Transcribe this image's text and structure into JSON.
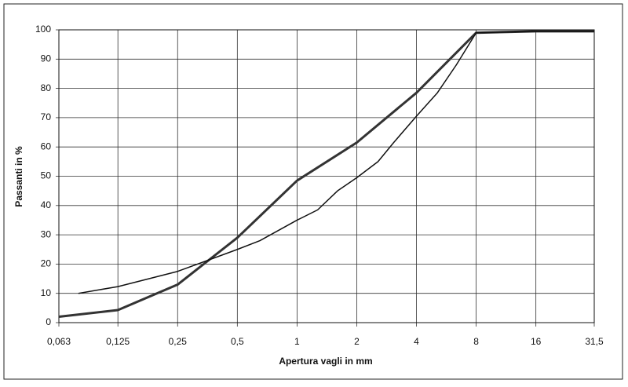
{
  "chart_data": {
    "type": "line",
    "xlabel": "Apertura vagli in mm",
    "ylabel": "Passanti in %",
    "xscale": "log",
    "xlim": [
      0.063,
      31.5
    ],
    "xticks": [
      {
        "value": 0.063,
        "label": "0,063"
      },
      {
        "value": 0.125,
        "label": "0,125"
      },
      {
        "value": 0.25,
        "label": "0,25"
      },
      {
        "value": 0.5,
        "label": "0,5"
      },
      1,
      2,
      4,
      8,
      16,
      {
        "value": 31.5,
        "label": "31,5"
      }
    ],
    "ylim": [
      0,
      100
    ],
    "yticks": [
      0,
      10,
      20,
      30,
      40,
      50,
      60,
      70,
      80,
      90,
      100
    ],
    "grid": true,
    "series": [
      {
        "color": "#333333",
        "x": [
          0.063,
          0.125,
          0.25,
          0.5,
          1,
          2,
          4,
          8,
          16,
          31.5
        ],
        "values": [
          2,
          4.3,
          13,
          29,
          48.5,
          61.5,
          78.5,
          99,
          99.5,
          99.5
        ]
      },
      {
        "color": "#111111",
        "x": [
          0.079,
          0.125,
          0.25,
          0.5,
          0.65,
          1,
          1.27,
          1.6,
          2,
          2.56,
          3.07,
          4,
          5.1,
          6.35,
          8,
          16,
          31.5
        ],
        "values": [
          10,
          12.3,
          17.5,
          25,
          28,
          35,
          38.5,
          45,
          49.5,
          55,
          61.5,
          70.5,
          78.5,
          88,
          99,
          99.5,
          99.5
        ]
      }
    ]
  }
}
